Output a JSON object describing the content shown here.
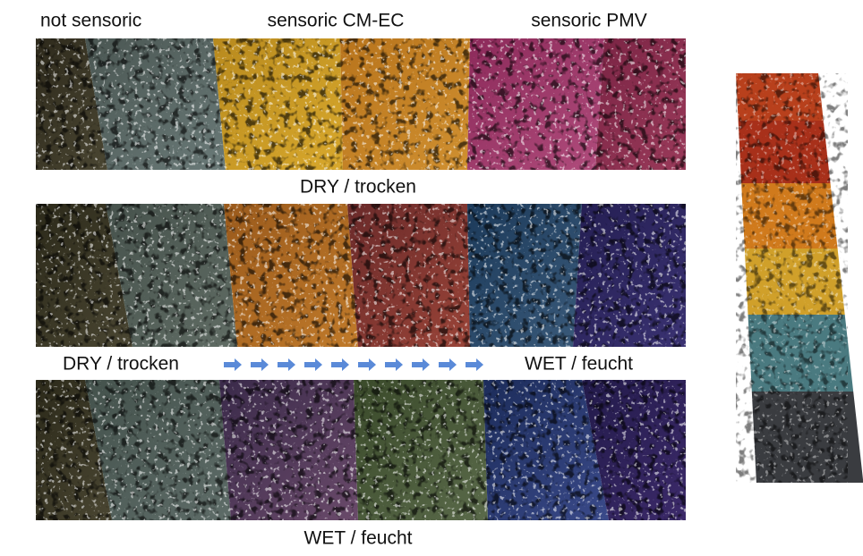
{
  "header": {
    "labels": [
      "not sensoric",
      "sensoric CM-EC",
      "sensoric PMV"
    ]
  },
  "rows": [
    {
      "caption": "DRY / trocken"
    }
  ],
  "transition": {
    "from": "DRY / trocken",
    "to": "WET / feucht"
  },
  "footer": {
    "caption": "WET / feucht"
  }
}
